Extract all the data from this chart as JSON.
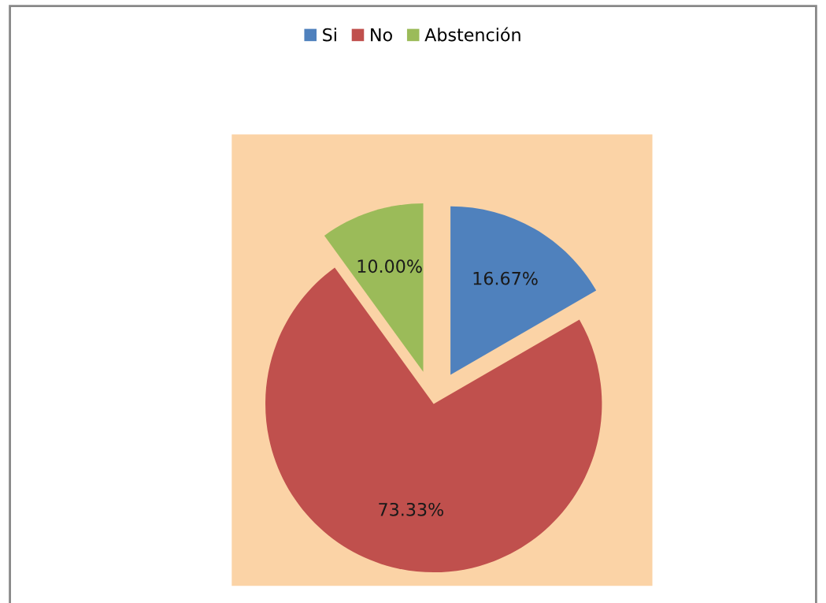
{
  "chart_data": {
    "type": "pie",
    "categories": [
      "Si",
      "No",
      "Abstención"
    ],
    "values": [
      16.67,
      73.33,
      10.0
    ],
    "colors": [
      "#4f81bd",
      "#c0504d",
      "#9bbb59"
    ],
    "value_labels": [
      "16.67%",
      "73.33%",
      "10.00%"
    ],
    "legend": "top"
  }
}
